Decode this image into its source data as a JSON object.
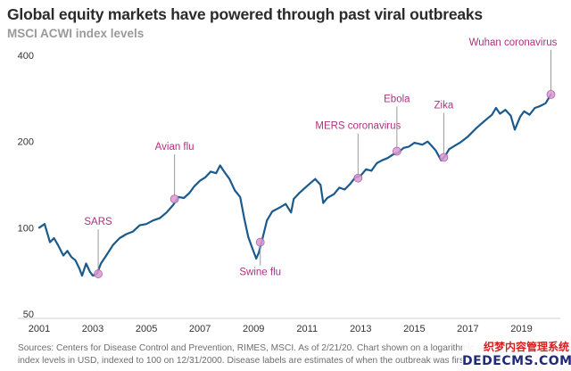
{
  "chart_data": {
    "type": "line",
    "title": "Global equity markets have powered through past viral outbreaks",
    "subtitle": "MSCI ACWI index levels",
    "yscale": "log",
    "ylim": [
      50,
      400
    ],
    "yticks": [
      50,
      100,
      200,
      400
    ],
    "xlim": [
      2001,
      2020.25
    ],
    "xticks": [
      "2001",
      "2003",
      "2005",
      "2007",
      "2009",
      "2011",
      "2013",
      "2015",
      "2017",
      "2019"
    ],
    "grid": false,
    "line_color": "#1a5a8c",
    "annotation_color": "#b03080",
    "series": [
      {
        "x": [
          2001.0,
          2001.2,
          2001.4,
          2001.55,
          2001.7,
          2001.9,
          2002.05,
          2002.2,
          2002.35,
          2002.5,
          2002.6,
          2002.75,
          2002.9,
          2003.0,
          2003.15,
          2003.3,
          2003.5,
          2003.75,
          2004.0,
          2004.25,
          2004.5,
          2004.75,
          2005.0,
          2005.25,
          2005.5,
          2005.75,
          2006.0,
          2006.2,
          2006.4,
          2006.6,
          2006.8,
          2007.0,
          2007.2,
          2007.4,
          2007.6,
          2007.75,
          2007.9,
          2008.1,
          2008.3,
          2008.5,
          2008.65,
          2008.8,
          2008.95,
          2009.1,
          2009.2,
          2009.35,
          2009.5,
          2009.7,
          2010.0,
          2010.2,
          2010.4,
          2010.5,
          2010.7,
          2011.0,
          2011.3,
          2011.5,
          2011.6,
          2011.75,
          2012.0,
          2012.2,
          2012.4,
          2012.6,
          2012.8,
          2013.0,
          2013.2,
          2013.4,
          2013.6,
          2013.8,
          2014.0,
          2014.2,
          2014.4,
          2014.6,
          2014.8,
          2015.0,
          2015.3,
          2015.5,
          2015.65,
          2015.8,
          2016.0,
          2016.15,
          2016.3,
          2016.5,
          2016.7,
          2017.0,
          2017.3,
          2017.6,
          2017.9,
          2018.05,
          2018.2,
          2018.4,
          2018.6,
          2018.75,
          2018.95,
          2019.1,
          2019.3,
          2019.5,
          2019.7,
          2019.9,
          2020.1
        ],
        "y": [
          100,
          103,
          89,
          92,
          87,
          80,
          83,
          79,
          77,
          72,
          68,
          75,
          70,
          68,
          69,
          75,
          80,
          87,
          92,
          95,
          97,
          102,
          103,
          106,
          108,
          113,
          120,
          128,
          127,
          132,
          140,
          146,
          150,
          157,
          155,
          165,
          157,
          148,
          135,
          128,
          108,
          93,
          85,
          78,
          82,
          93,
          106,
          114,
          118,
          121,
          113,
          126,
          132,
          140,
          148,
          141,
          122,
          127,
          131,
          138,
          136,
          142,
          150,
          152,
          160,
          158,
          168,
          172,
          175,
          180,
          183,
          190,
          192,
          198,
          195,
          200,
          193,
          186,
          172,
          178,
          188,
          193,
          198,
          208,
          222,
          235,
          248,
          262,
          250,
          258,
          246,
          220,
          244,
          255,
          248,
          262,
          266,
          272,
          292
        ]
      }
    ],
    "annotations": [
      {
        "label": "SARS",
        "x": 2003.2,
        "y": 69,
        "label_pos": "above"
      },
      {
        "label": "Avian flu",
        "x": 2006.05,
        "y": 126,
        "label_pos": "above"
      },
      {
        "label": "Swine flu",
        "x": 2009.25,
        "y": 89,
        "label_pos": "below"
      },
      {
        "label": "MERS coronavirus",
        "x": 2012.9,
        "y": 149,
        "label_pos": "above"
      },
      {
        "label": "Ebola",
        "x": 2014.35,
        "y": 185,
        "label_pos": "above"
      },
      {
        "label": "Zika",
        "x": 2016.1,
        "y": 176,
        "label_pos": "above"
      },
      {
        "label": "Wuhan coronavirus",
        "x": 2020.1,
        "y": 292,
        "label_pos": "above"
      }
    ]
  },
  "source_lines": [
    "Sources: Centers for Disease Control and Prevention, RIMES, MSCI. As of 2/21/20. Chart shown on a logarithmic s",
    "index levels in USD, indexed to 100 on 12/31/2000. Disease labels are estimates of when the outbreak was first re"
  ],
  "watermark": {
    "line1": "织梦内容管理系统",
    "line2": "DEDECMS.COM"
  }
}
